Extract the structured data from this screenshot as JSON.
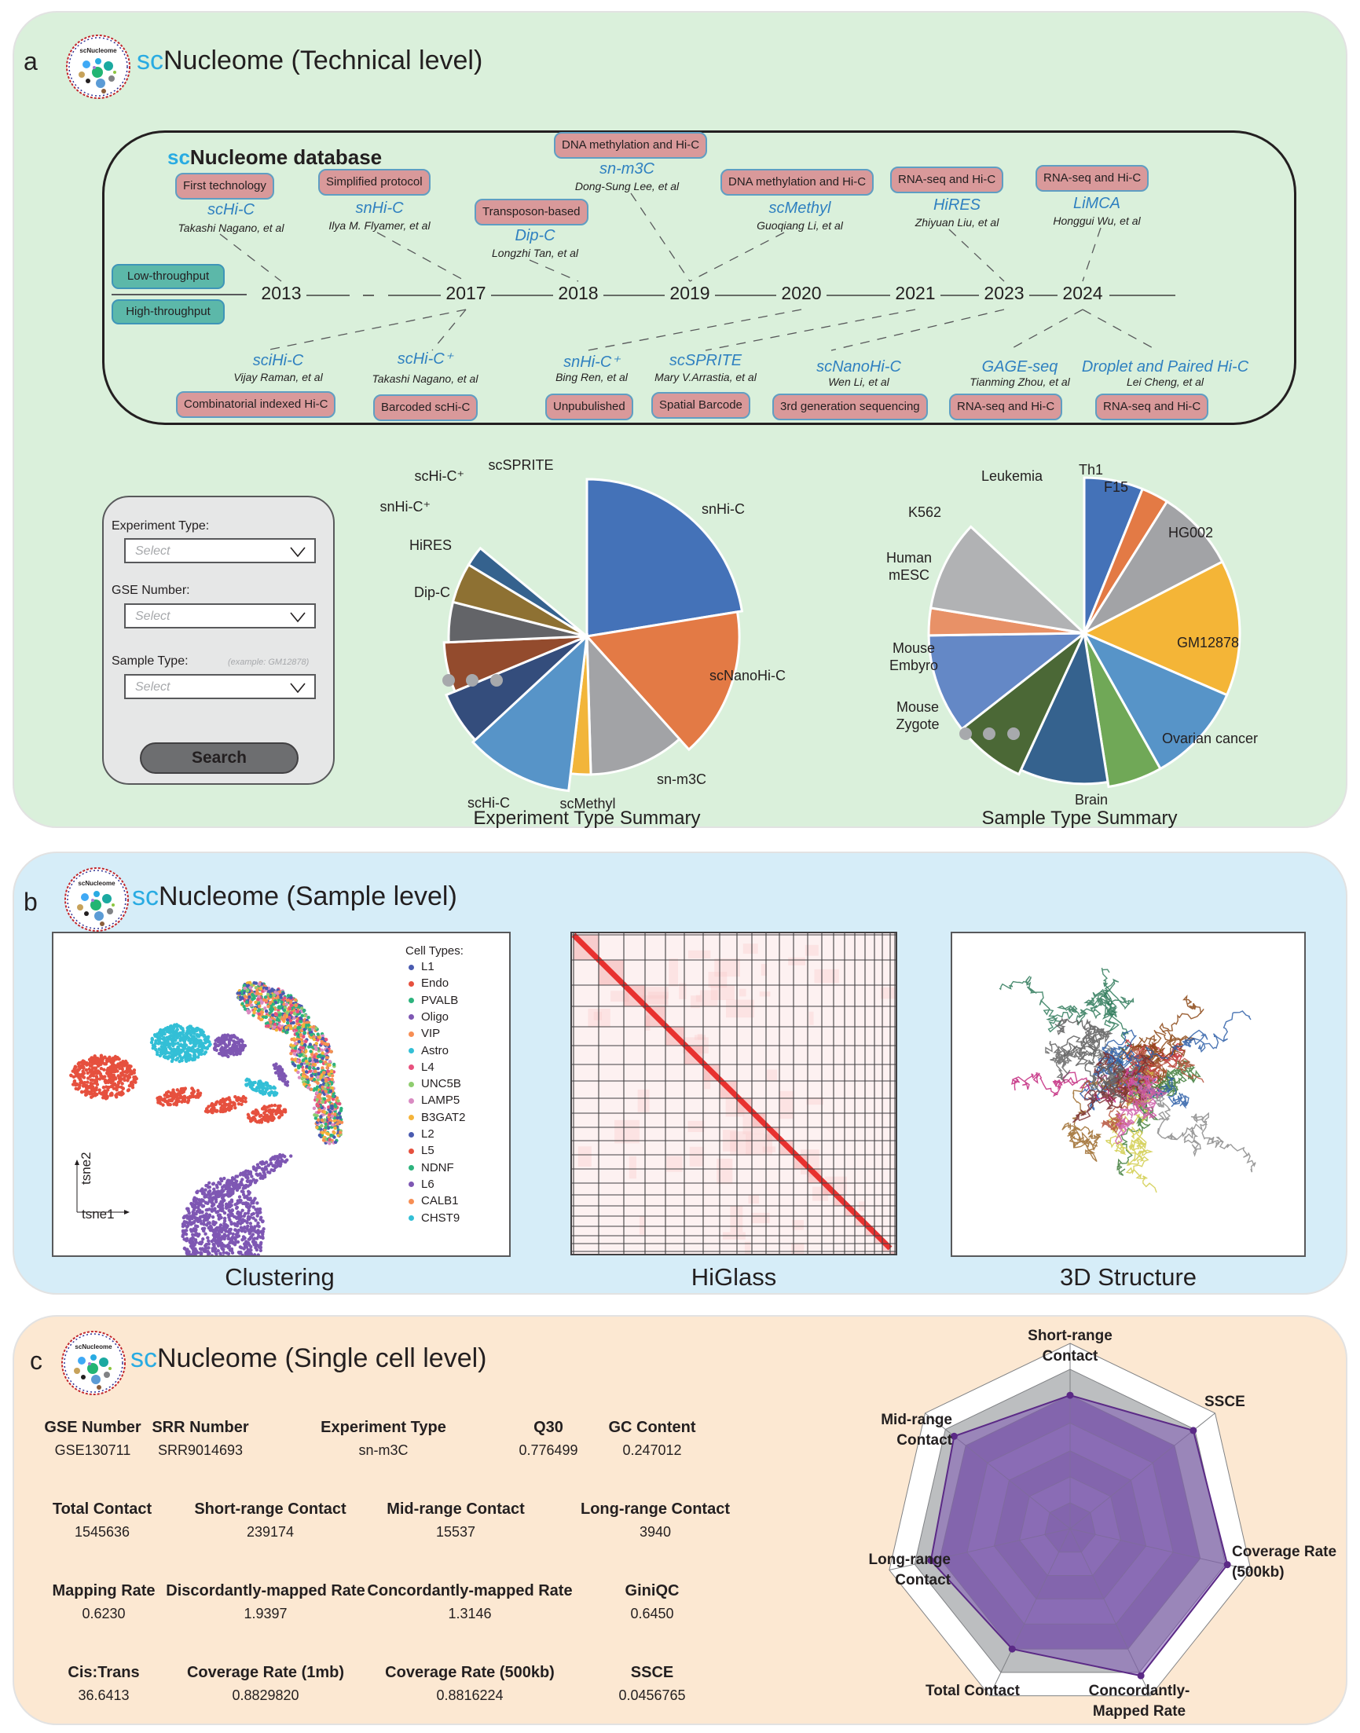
{
  "panels": {
    "a": {
      "label": "a",
      "title_prefix": "sc",
      "title_rest": "Nucleome (Technical level)"
    },
    "b": {
      "label": "b",
      "title_prefix": "sc",
      "title_rest": "Nucleome (Sample level)"
    },
    "c": {
      "label": "c",
      "title_prefix": "sc",
      "title_rest": "Nucleome (Single cell level)"
    }
  },
  "logo": {
    "text": "scNucleome",
    "icon": "dna-network-logo"
  },
  "database": {
    "title_prefix": "sc",
    "title_rest": "Nucleome database",
    "throughput": [
      "Low-throughput",
      "High-throughput"
    ],
    "years": [
      "2013",
      "2017",
      "2018",
      "2019",
      "2020",
      "2021",
      "2023",
      "2024"
    ],
    "top_items": [
      {
        "tag": "First technology",
        "tech": "scHi-C",
        "author": "Takashi Nagano, et al",
        "year": "2013"
      },
      {
        "tag": "Simplified protocol",
        "tech": "snHi-C",
        "author": "Ilya M. Flyamer, et al",
        "year": "2017"
      },
      {
        "tag": "Transposon-based",
        "tech": "Dip-C",
        "author": "Longzhi Tan, et al",
        "year": "2018"
      },
      {
        "tag": "DNA methylation and Hi-C",
        "tech": "sn-m3C",
        "author": "Dong-Sung Lee, et al",
        "year": "2019"
      },
      {
        "tag": "DNA methylation and Hi-C",
        "tech": "scMethyl",
        "author": "Guoqiang Li, et al",
        "year": "2019"
      },
      {
        "tag": "RNA-seq and Hi-C",
        "tech": "HiRES",
        "author": "Zhiyuan Liu, et al",
        "year": "2023"
      },
      {
        "tag": "RNA-seq and Hi-C",
        "tech": "LiMCA",
        "author": "Honggui Wu, et al",
        "year": "2024"
      }
    ],
    "bottom_items": [
      {
        "tag": "Combinatorial indexed Hi-C",
        "tech": "sciHi-C",
        "author": "Vijay Raman, et al",
        "year": "2017"
      },
      {
        "tag": "Barcoded scHi-C",
        "tech": "scHi-C⁺",
        "author": "Takashi Nagano, et al",
        "year": "2017"
      },
      {
        "tag": "Unpubulished",
        "tech": "snHi-C⁺",
        "author": "Bing Ren, et al",
        "year": "2020"
      },
      {
        "tag": "Spatial Barcode",
        "tech": "scSPRITE",
        "author": "Mary V.Arrastia, et al",
        "year": "2021"
      },
      {
        "tag": "3rd generation sequencing",
        "tech": "scNanoHi-C",
        "author": "Wen Li, et al",
        "year": "2023"
      },
      {
        "tag": "RNA-seq and Hi-C",
        "tech": "GAGE-seq",
        "author": "Tianming Zhou, et al",
        "year": "2024"
      },
      {
        "tag": "RNA-seq and Hi-C",
        "tech": "Droplet and Paired Hi-C",
        "author": "Lei Cheng, et al",
        "year": "2024"
      }
    ]
  },
  "search_form": {
    "experiment_type_label": "Experiment Type:",
    "experiment_type_placeholder": "Select",
    "gse_label": "GSE Number:",
    "gse_placeholder": "Select",
    "sample_type_label": "Sample Type:",
    "sample_type_hint": "(example: GM12878)",
    "sample_type_placeholder": "Select",
    "search_button": "Search"
  },
  "sample_panel": {
    "captions": [
      "Clustering",
      "HiGlass",
      "3D Structure"
    ],
    "tsne": {
      "x_axis": "tsne1",
      "y_axis": "tsne2",
      "legend_title": "Cell Types:"
    }
  },
  "single_cell_metrics": [
    [
      {
        "label": "GSE Number",
        "value": "GSE130711"
      },
      {
        "label": "SRR Number",
        "value": "SRR9014693"
      },
      {
        "label": "Experiment Type",
        "value": "sn-m3C"
      },
      {
        "label": "Q30",
        "value": "0.776499"
      },
      {
        "label": "GC Content",
        "value": "0.247012"
      }
    ],
    [
      {
        "label": "Total Contact",
        "value": "1545636"
      },
      {
        "label": "Short-range Contact",
        "value": "239174"
      },
      {
        "label": "Mid-range Contact",
        "value": "15537"
      },
      {
        "label": "Long-range Contact",
        "value": "3940"
      }
    ],
    [
      {
        "label": "Mapping Rate",
        "value": "0.6230"
      },
      {
        "label": "Discordantly-mapped Rate",
        "value": "1.9397"
      },
      {
        "label": "Concordantly-mapped Rate",
        "value": "1.3146"
      },
      {
        "label": "GiniQC",
        "value": "0.6450"
      }
    ],
    [
      {
        "label": "Cis:Trans",
        "value": "36.6413"
      },
      {
        "label": "Coverage Rate (1mb)",
        "value": "0.8829820"
      },
      {
        "label": "Coverage Rate (500kb)",
        "value": "0.8816224"
      },
      {
        "label": "SSCE",
        "value": "0.0456765"
      }
    ]
  ],
  "chart_data": [
    {
      "type": "pie",
      "title": "Experiment Type Summary",
      "note": "radius varies per slice (rose-style pie); remaining categories elided with ellipsis",
      "categories": [
        "snHi-C",
        "scNanoHi-C",
        "sn-m3C",
        "scMethyl",
        "scHi-C",
        "Dip-C",
        "HiRES",
        "snHi-C⁺",
        "scHi-C⁺",
        "scSPRITE"
      ],
      "values": [
        24,
        17,
        12,
        2.5,
        12,
        6,
        6,
        5,
        5,
        2.5
      ],
      "radius_rel": [
        1.0,
        0.97,
        0.88,
        0.88,
        0.99,
        0.97,
        0.91,
        0.88,
        0.88,
        0.88
      ],
      "colors": [
        "#4472b8",
        "#e37a45",
        "#a2a3a6",
        "#f2b53a",
        "#5794c8",
        "#344d7c",
        "#934b2d",
        "#636468",
        "#8e7133",
        "#35628e"
      ],
      "legend": "none (slice labels)"
    },
    {
      "type": "pie",
      "title": "Sample Type Summary",
      "note": "radius varies per slice (rose-style pie); remaining categories elided with ellipsis",
      "categories": [
        "Th1",
        "F15",
        "HG002",
        "GM12878",
        "Ovarian cancer",
        "Brain",
        "Mouse Zygote",
        "Mouse Embyro",
        "Human mESC",
        "K562",
        "Leukemia"
      ],
      "values": [
        6.5,
        3,
        9,
        15,
        11,
        6,
        10,
        8,
        11,
        3,
        10
      ],
      "radius_rel": [
        0.98,
        0.98,
        0.98,
        0.98,
        0.98,
        0.98,
        0.95,
        0.98,
        0.98,
        0.98,
        0.98
      ],
      "colors": [
        "#4472b8",
        "#e37a45",
        "#a2a3a6",
        "#f4b537",
        "#5794c8",
        "#70a857",
        "#35628e",
        "#4b6836",
        "#6488c6",
        "#e89167",
        "#b1b2b4"
      ],
      "legend": "none (slice labels)"
    },
    {
      "type": "scatter",
      "title": "Clustering",
      "xlabel": "tsne1",
      "ylabel": "tsne2",
      "legend_title": "Cell Types:",
      "legend": "right",
      "series": [
        {
          "name": "L1",
          "color": "#4a5bb0"
        },
        {
          "name": "Endo",
          "color": "#e6503e"
        },
        {
          "name": "PVALB",
          "color": "#2db37d"
        },
        {
          "name": "Oligo",
          "color": "#7e57b3"
        },
        {
          "name": "VIP",
          "color": "#f78e54"
        },
        {
          "name": "Astro",
          "color": "#33bfd6"
        },
        {
          "name": "L4",
          "color": "#e8517e"
        },
        {
          "name": "UNC5B",
          "color": "#8fcd6f"
        },
        {
          "name": "LAMP5",
          "color": "#d98bc2"
        },
        {
          "name": "B3GAT2",
          "color": "#f5b43a"
        },
        {
          "name": "L2",
          "color": "#4a5bb0"
        },
        {
          "name": "L5",
          "color": "#e6503e"
        },
        {
          "name": "NDNF",
          "color": "#2db37d"
        },
        {
          "name": "L6",
          "color": "#7e57b3"
        },
        {
          "name": "CALB1",
          "color": "#f78e54"
        },
        {
          "name": "CHST9",
          "color": "#33bfd6"
        }
      ]
    },
    {
      "type": "heatmap",
      "title": "HiGlass",
      "note": "genome-wide contact map, strong diagonal, chromosome grid"
    },
    {
      "type": "radar",
      "title": "Single cell QC radar",
      "categories": [
        "Short-range Contact",
        "SSCE",
        "Coverage Rate (500kb)",
        "Concordantly-Mapped Rate",
        "Total Contact",
        "Long-range Contact",
        "Mid-range Contact"
      ],
      "values": [
        0.72,
        0.85,
        0.87,
        0.88,
        0.72,
        0.77,
        0.8
      ],
      "rings": 6,
      "range": [
        0,
        1
      ],
      "color": "#7e57b3"
    }
  ]
}
